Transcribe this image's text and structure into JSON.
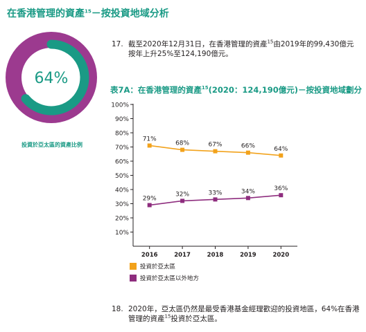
{
  "header": {
    "title": "在香港管理的資產",
    "title_sup": "15",
    "title_suffix": "－按投資地域分析"
  },
  "donut": {
    "value_text": "64%",
    "fraction": 0.64,
    "caption": "投資於亞太區的資產比例"
  },
  "paragraphs": {
    "p17": {
      "num": "17.",
      "text_a": "截至2020年12月31日，在香港管理的資產",
      "sup": "15",
      "text_b": "由2019年的99,430億元按年上升25%至124,190億元。"
    },
    "p18": {
      "num": "18.",
      "text_a": "2020年，亞太區仍然是最受香港基金經理歡迎的投資地區，64%在香港管理的資產",
      "sup": "15",
      "text_b": "投資於亞太區。"
    }
  },
  "table_title": {
    "prefix": "表7A：在香港管理的資產",
    "sup": "15",
    "suffix": "(2020：124,190億元)－按投資地域劃分"
  },
  "colors": {
    "teal": "#1a9a85",
    "purple": "#9c3a8f",
    "orange": "#f2a21b",
    "series2": "#8e2d7e",
    "grid": "#b8b8b8"
  },
  "chart_data": {
    "type": "line",
    "x": [
      "2016",
      "2017",
      "2018",
      "2019",
      "2020"
    ],
    "y_ticks": [
      "100%",
      "90%",
      "80%",
      "70%",
      "60%",
      "50%",
      "40%",
      "30%",
      "20%",
      "10%"
    ],
    "ylim": [
      0,
      100
    ],
    "grid": false,
    "series": [
      {
        "name": "投資於亞太區",
        "values": [
          71,
          68,
          67,
          66,
          64
        ],
        "labels": [
          "71%",
          "68%",
          "67%",
          "66%",
          "64%"
        ],
        "color": "#f2a21b"
      },
      {
        "name": "投資於亞太區以外地方",
        "values": [
          29,
          32,
          33,
          34,
          36
        ],
        "labels": [
          "29%",
          "32%",
          "33%",
          "34%",
          "36%"
        ],
        "color": "#8e2d7e"
      }
    ],
    "legend_position": "bottom-left"
  }
}
